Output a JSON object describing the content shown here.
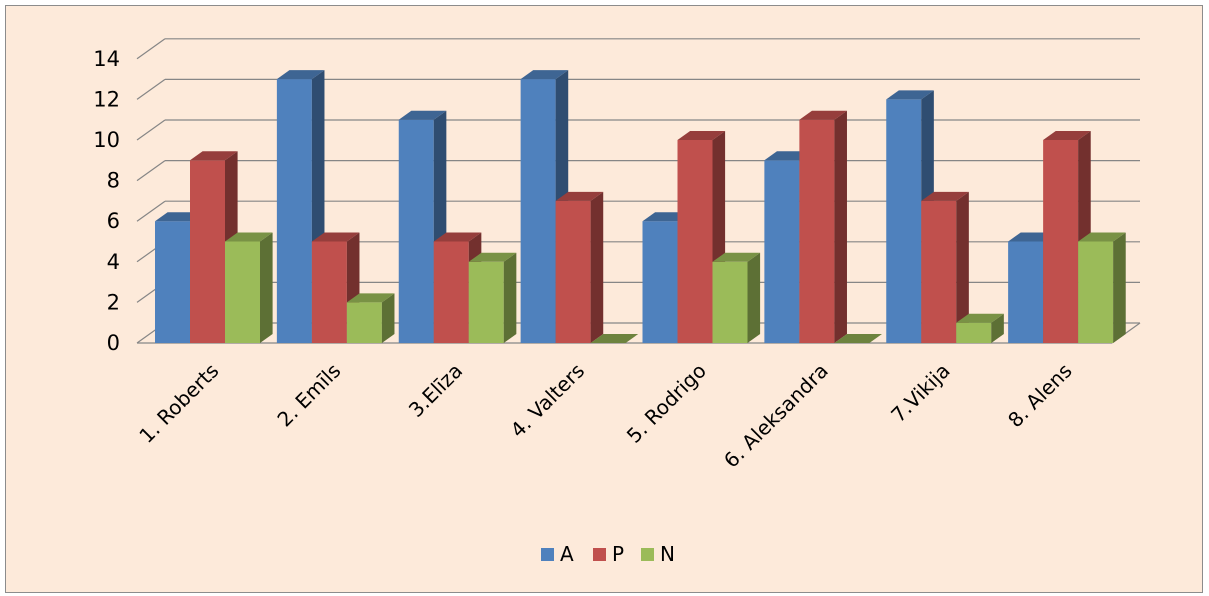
{
  "chart_data": {
    "type": "bar",
    "style": "3d-clustered-column",
    "categories": [
      "1. Roberts",
      "2. Emīls",
      "3.Elīza",
      "4. Valters",
      "5. Rodrigo",
      "6. Aleksandra",
      "7.Vikija",
      "8. Alens"
    ],
    "series": [
      {
        "name": "A",
        "color": "#4f81bd",
        "values": [
          6,
          13,
          11,
          13,
          6,
          9,
          12,
          5
        ]
      },
      {
        "name": "P",
        "color": "#c0504d",
        "values": [
          9,
          5,
          5,
          7,
          10,
          11,
          7,
          10
        ]
      },
      {
        "name": "N",
        "color": "#9bbb59",
        "values": [
          5,
          2,
          4,
          0,
          4,
          0,
          1,
          5
        ]
      }
    ],
    "yticks": [
      "0",
      "2",
      "4",
      "6",
      "8",
      "10",
      "12",
      "14"
    ],
    "ylim": [
      0,
      14
    ],
    "title": "",
    "xlabel": "",
    "ylabel": "",
    "grid": true,
    "legend_position": "bottom",
    "background_color": "#fdeada"
  }
}
